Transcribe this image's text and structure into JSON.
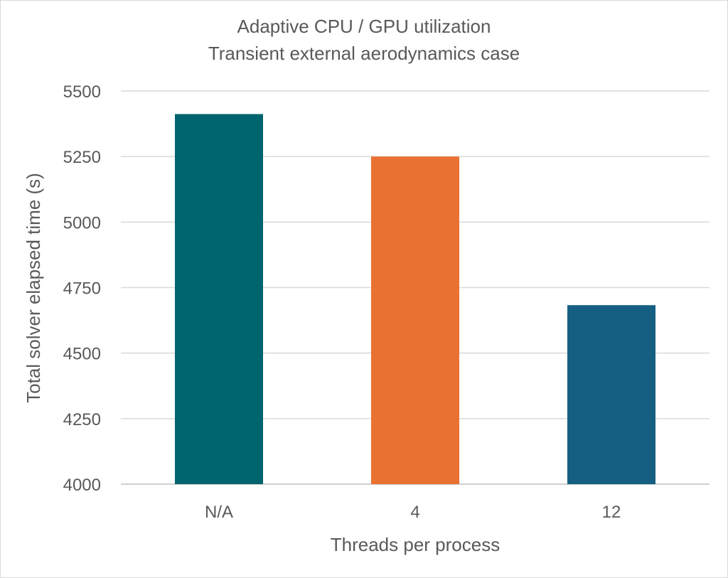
{
  "chart_data": {
    "type": "bar",
    "title": "Adaptive CPU / GPU utilization",
    "subtitle": "Transient external aerodynamics case",
    "xlabel": "Threads per process",
    "ylabel": "Total solver elapsed time (s)",
    "categories": [
      "N/A",
      "4",
      "12"
    ],
    "values": [
      5412,
      5250,
      4683
    ],
    "colors": [
      "#00646E",
      "#E97132",
      "#156082"
    ],
    "ylim": [
      4000,
      5500
    ],
    "yticks": [
      4000,
      4250,
      4500,
      4750,
      5000,
      5250,
      5500
    ],
    "grid": true,
    "legend": "none"
  }
}
